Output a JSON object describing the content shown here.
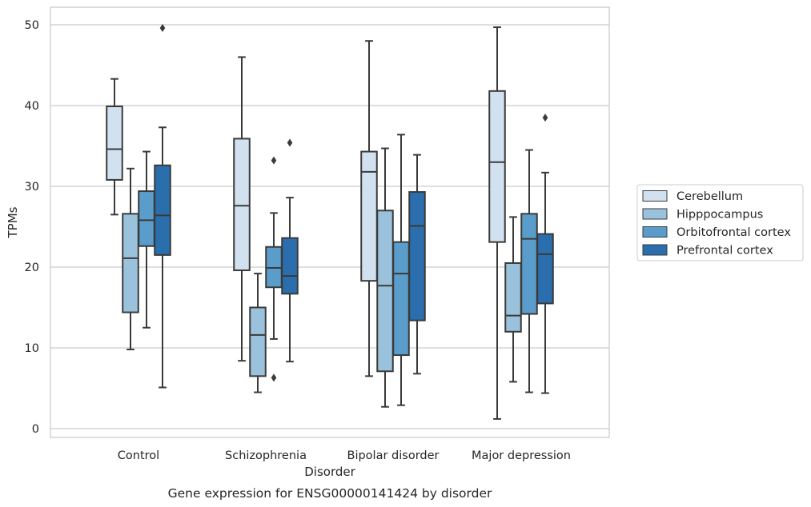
{
  "caption": "Gene expression for ENSG00000141424 by disorder",
  "chart_data": {
    "type": "box",
    "title": "",
    "xlabel": "Disorder",
    "ylabel": "TPMs",
    "ylim": [
      -1,
      52
    ],
    "yticks": [
      0,
      10,
      20,
      30,
      40,
      50
    ],
    "grid": "horizontal",
    "legend_position": "right",
    "categories": [
      "Control",
      "Schizophrenia",
      "Bipolar disorder",
      "Major depression"
    ],
    "series": [
      {
        "name": "Cerebellum",
        "color": "#d2e1f0",
        "boxes": [
          {
            "whislo": 26.5,
            "q1": 30.8,
            "med": 34.6,
            "q3": 39.9,
            "whishi": 43.3,
            "fliers": []
          },
          {
            "whislo": 8.4,
            "q1": 19.6,
            "med": 27.6,
            "q3": 35.9,
            "whishi": 46.0,
            "fliers": []
          },
          {
            "whislo": 6.5,
            "q1": 18.3,
            "med": 31.8,
            "q3": 34.3,
            "whishi": 48.0,
            "fliers": []
          },
          {
            "whislo": 1.2,
            "q1": 23.1,
            "med": 33.0,
            "q3": 41.8,
            "whishi": 49.7,
            "fliers": []
          }
        ]
      },
      {
        "name": "Hipppocampus",
        "color": "#9ac2dd",
        "boxes": [
          {
            "whislo": 9.8,
            "q1": 14.4,
            "med": 21.1,
            "q3": 26.6,
            "whishi": 32.2,
            "fliers": []
          },
          {
            "whislo": 4.5,
            "q1": 6.5,
            "med": 11.6,
            "q3": 15.0,
            "whishi": 19.2,
            "fliers": []
          },
          {
            "whislo": 2.7,
            "q1": 7.1,
            "med": 17.7,
            "q3": 27.0,
            "whishi": 34.7,
            "fliers": []
          },
          {
            "whislo": 5.8,
            "q1": 12.0,
            "med": 14.0,
            "q3": 20.5,
            "whishi": 26.2,
            "fliers": []
          }
        ]
      },
      {
        "name": "Orbitofrontal cortex",
        "color": "#5a9dca",
        "boxes": [
          {
            "whislo": 12.5,
            "q1": 22.6,
            "med": 25.8,
            "q3": 29.4,
            "whishi": 34.3,
            "fliers": []
          },
          {
            "whislo": 11.1,
            "q1": 17.5,
            "med": 19.9,
            "q3": 22.5,
            "whishi": 26.7,
            "fliers": [
              33.2,
              6.3
            ]
          },
          {
            "whislo": 2.9,
            "q1": 9.1,
            "med": 19.2,
            "q3": 23.1,
            "whishi": 36.4,
            "fliers": []
          },
          {
            "whislo": 4.5,
            "q1": 14.2,
            "med": 23.5,
            "q3": 26.6,
            "whishi": 34.5,
            "fliers": []
          }
        ]
      },
      {
        "name": "Prefrontal cortex",
        "color": "#2b6ead",
        "boxes": [
          {
            "whislo": 5.1,
            "q1": 21.5,
            "med": 26.4,
            "q3": 32.6,
            "whishi": 37.3,
            "fliers": [
              49.6
            ]
          },
          {
            "whislo": 8.3,
            "q1": 16.7,
            "med": 18.9,
            "q3": 23.6,
            "whishi": 28.6,
            "fliers": [
              35.4
            ]
          },
          {
            "whislo": 6.8,
            "q1": 13.4,
            "med": 25.1,
            "q3": 29.3,
            "whishi": 33.9,
            "fliers": []
          },
          {
            "whislo": 4.4,
            "q1": 15.5,
            "med": 21.6,
            "q3": 24.1,
            "whishi": 31.7,
            "fliers": [
              38.5
            ]
          }
        ]
      }
    ]
  }
}
